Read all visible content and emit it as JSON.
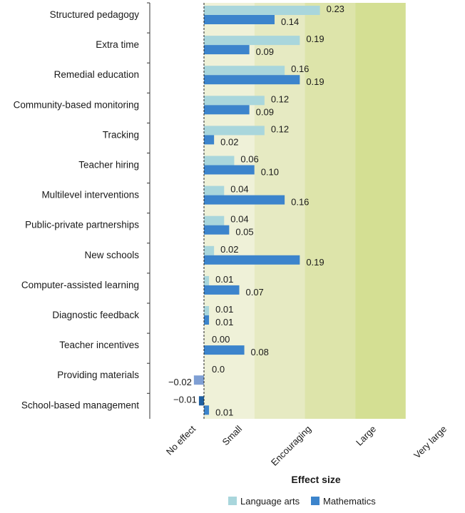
{
  "chart_data": {
    "type": "bar",
    "orientation": "horizontal",
    "xlabel": "Effect size",
    "categories": [
      "Structured pedagogy",
      "Extra time",
      "Remedial education",
      "Community-based monitoring",
      "Tracking",
      "Teacher hiring",
      "Multilevel interventions",
      "Public-private partnerships",
      "New schools",
      "Computer-assisted learning",
      "Diagnostic feedback",
      "Teacher incentives",
      "Providing materials",
      "School-based management"
    ],
    "series": [
      {
        "name": "Language arts",
        "color": "#a9d6dc",
        "values": [
          0.23,
          0.19,
          0.16,
          0.12,
          0.12,
          0.06,
          0.04,
          0.04,
          0.02,
          0.01,
          0.01,
          0.0,
          0.0,
          -0.01
        ],
        "labels": [
          "0.23",
          "0.19",
          "0.16",
          "0.12",
          "0.12",
          "0.06",
          "0.04",
          "0.04",
          "0.02",
          "0.01",
          "0.01",
          "0.00",
          "0.0",
          "−0.01"
        ],
        "negative_color": "#1f5fa0"
      },
      {
        "name": "Mathematics",
        "color": "#3c84cc",
        "values": [
          0.14,
          0.09,
          0.19,
          0.09,
          0.02,
          0.1,
          0.16,
          0.05,
          0.19,
          0.07,
          0.01,
          0.08,
          -0.02,
          0.01
        ],
        "labels": [
          "0.14",
          "0.09",
          "0.19",
          "0.09",
          "0.02",
          "0.10",
          "0.16",
          "0.05",
          "0.19",
          "0.07",
          "0.01",
          "0.08",
          "−0.02",
          "0.01"
        ],
        "negative_color": "#7f9fd4"
      }
    ],
    "zones": [
      {
        "label": "No effect",
        "from": -0.1,
        "to": 0.0,
        "color": "#ffffff"
      },
      {
        "label": "Small",
        "from": 0.0,
        "to": 0.1,
        "color": "#eff1d8"
      },
      {
        "label": "Encouraging",
        "from": 0.1,
        "to": 0.2,
        "color": "#e6eac2"
      },
      {
        "label": "Large",
        "from": 0.2,
        "to": 0.3,
        "color": "#dde4aa"
      },
      {
        "label": "Very large",
        "from": 0.3,
        "to": 0.4,
        "color": "#d4df93"
      }
    ],
    "xlim": [
      -0.1,
      0.4
    ],
    "legend_position": "bottom"
  }
}
